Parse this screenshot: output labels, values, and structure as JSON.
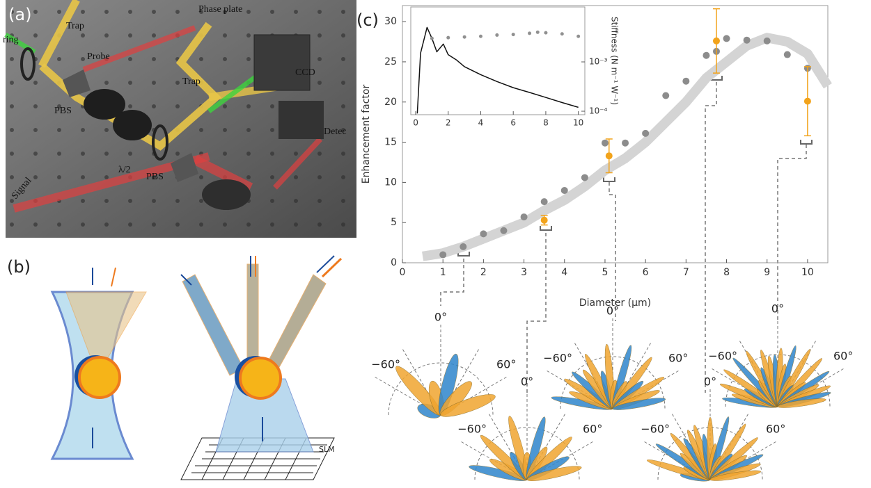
{
  "figure": {
    "panel_a": {
      "label": "(a)",
      "texts": [
        "Trap",
        "Probe",
        "Phase plate",
        "CCD",
        "ring",
        "Trap",
        "PBS",
        "λ/2",
        "PBS",
        "Detec",
        "Signal"
      ]
    },
    "panel_b": {
      "label": "(b)",
      "slm": "SLM"
    },
    "panel_c": {
      "label": "(c)"
    },
    "polar_plots": [
      {
        "top": "0°",
        "left": "−60°",
        "right": "60°"
      },
      {
        "top": "0°",
        "left": "−60°",
        "right": "60°"
      },
      {
        "top": "0°",
        "left": "−60°",
        "right": "60°"
      },
      {
        "top": "0°",
        "left": "−60°",
        "right": "60°"
      },
      {
        "top": "0°",
        "left": "−60°",
        "right": "60°"
      }
    ]
  },
  "chart_data": [
    {
      "type": "scatter",
      "x_label": "Diameter (μm)",
      "y_label": "Enhancement factor",
      "xlim": [
        0,
        10.5
      ],
      "ylim": [
        0,
        32
      ],
      "xticks": [
        0,
        1,
        2,
        3,
        4,
        5,
        6,
        7,
        8,
        9,
        10
      ],
      "yticks": [
        0,
        5,
        10,
        15,
        20,
        25,
        30
      ],
      "series": [
        {
          "type": "line",
          "color": "#d4d4d4",
          "x": [
            0.5,
            1,
            1.5,
            2,
            2.5,
            3,
            3.5,
            4,
            4.5,
            5,
            5.5,
            6,
            6.5,
            7,
            7.5,
            8,
            8.5,
            9,
            9.5,
            10,
            10.5
          ],
          "values": [
            0.8,
            1.2,
            2,
            3,
            4,
            5,
            6.5,
            7.8,
            9.5,
            11.5,
            13,
            15,
            17.5,
            20,
            23,
            25,
            27,
            28,
            27.5,
            26,
            22
          ]
        },
        {
          "type": "scatter",
          "color": "#8c8c8c",
          "x": [
            1,
            1.5,
            2,
            2.5,
            3,
            3.5,
            4,
            4.5,
            5,
            5.5,
            6,
            6.5,
            7,
            7.5,
            7.75,
            8,
            8.5,
            9,
            9.5,
            10
          ],
          "values": [
            1,
            2,
            3.6,
            4,
            5.7,
            7.6,
            9,
            10.6,
            14.9,
            14.9,
            16.1,
            20.8,
            22.6,
            25.8,
            26.3,
            27.9,
            27.7,
            27.6,
            25.9,
            24.2
          ]
        },
        {
          "type": "scatter",
          "color": "#f2a31b",
          "x": [
            3.5,
            5.1,
            7.75,
            10
          ],
          "values": [
            5.3,
            13.3,
            27.6,
            20.1
          ],
          "errors": [
            0.6,
            2.1,
            4,
            4.3
          ]
        }
      ]
    },
    {
      "type": "line",
      "y_label": "Stiffness (N m⁻¹ W⁻¹)",
      "log_y": true,
      "yaxis_position": "right",
      "xlim": [
        -0.3,
        10.4
      ],
      "ylim": [
        8.5e-05,
        0.013
      ],
      "xticks": [
        0,
        2,
        4,
        6,
        8,
        10
      ],
      "yticks": [
        {
          "value": 0.0001,
          "label": "10⁻⁴"
        },
        {
          "value": 0.001,
          "label": "10⁻³"
        }
      ],
      "series": [
        {
          "type": "line",
          "color": "#111111",
          "x": [
            0.1,
            0.3,
            0.7,
            1,
            1.3,
            1.7,
            2,
            2.5,
            3,
            4,
            5,
            6,
            7,
            8,
            9,
            10
          ],
          "values": [
            9e-05,
            0.0015,
            0.005,
            0.003,
            0.0016,
            0.0023,
            0.0014,
            0.0011,
            0.0008,
            0.00055,
            0.0004,
            0.0003,
            0.00024,
            0.00019,
            0.00015,
            0.00012
          ]
        },
        {
          "type": "scatter",
          "color": "#909090",
          "x": [
            1,
            2,
            3,
            4,
            5,
            6,
            7,
            7.5,
            8,
            9,
            10
          ],
          "values": [
            0.003,
            0.0031,
            0.0032,
            0.0033,
            0.0035,
            0.0036,
            0.0038,
            0.004,
            0.0039,
            0.0037,
            0.0033
          ]
        }
      ]
    }
  ]
}
